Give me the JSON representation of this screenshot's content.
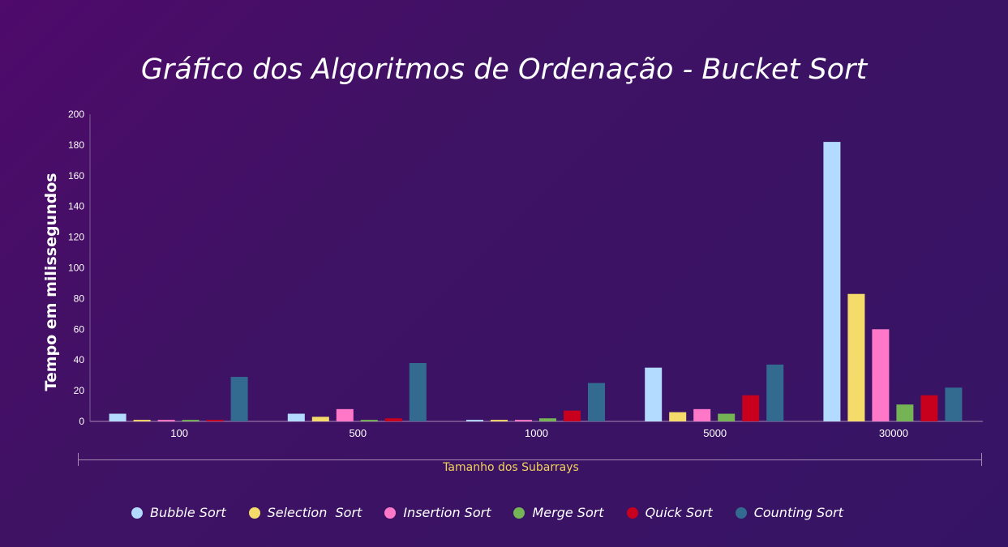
{
  "chart_data": {
    "type": "bar",
    "title": "Gráfico dos Algoritmos de Ordenação - Bucket Sort",
    "xlabel": "Tamanho dos Subarrays",
    "ylabel": "Tempo em milissegundos",
    "ylim": [
      0,
      200
    ],
    "yticks": [
      "0",
      "20",
      "40",
      "60",
      "80",
      "100",
      "120",
      "140",
      "160",
      "180",
      "200"
    ],
    "categories": [
      "100",
      "500",
      "1000",
      "5000",
      "30000"
    ],
    "grid": false,
    "legend_position": "bottom",
    "series": [
      {
        "name": "Bubble Sort",
        "color": "#b3daff",
        "values": [
          5,
          5,
          1,
          35,
          182
        ]
      },
      {
        "name": "Selection  Sort",
        "color": "#f5dc6a",
        "values": [
          1,
          3,
          1,
          6,
          83
        ]
      },
      {
        "name": "Insertion Sort",
        "color": "#ff78c8",
        "values": [
          1,
          8,
          1,
          8,
          60
        ]
      },
      {
        "name": "Merge Sort",
        "color": "#74b455",
        "values": [
          1,
          1,
          2,
          5,
          11
        ]
      },
      {
        "name": "Quick Sort",
        "color": "#c8001e",
        "values": [
          1,
          2,
          7,
          17,
          17
        ]
      },
      {
        "name": "Counting Sort",
        "color": "#336b90",
        "values": [
          29,
          38,
          25,
          37,
          22
        ]
      }
    ]
  }
}
